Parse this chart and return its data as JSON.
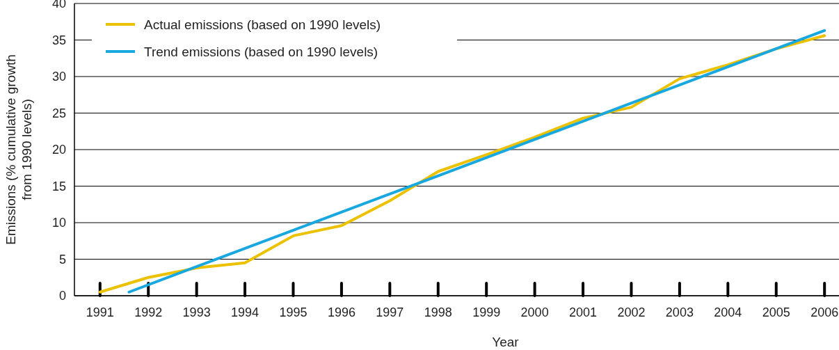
{
  "chart_data": {
    "type": "line",
    "xlabel": "Year",
    "ylabel": "Emissions (% cumulative growth from 1990 levels)",
    "xlim": [
      1990.47,
      2006.3
    ],
    "xticks": [
      1991,
      1992,
      1993,
      1994,
      1995,
      1996,
      1997,
      1998,
      1999,
      2000,
      2001,
      2002,
      2003,
      2004,
      2005,
      2006
    ],
    "ylim": [
      0,
      40
    ],
    "yticks": [
      0,
      5,
      10,
      15,
      20,
      25,
      30,
      35,
      40
    ],
    "grid": "y",
    "legend": "top left",
    "line_style": "solid",
    "marker": "none",
    "series": [
      {
        "name": "Actual emissions (based on 1990 levels)",
        "color": "#ecc200",
        "x": [
          1991,
          1992,
          1993,
          1994,
          1995,
          1996,
          1997,
          1998,
          1999,
          2000,
          2001,
          2002,
          2003,
          2004,
          2005,
          2006
        ],
        "values": [
          0.5,
          2.5,
          3.8,
          4.5,
          8.2,
          9.6,
          13,
          17,
          19.3,
          21.7,
          24.3,
          25.8,
          29.7,
          31.6,
          33.8,
          35.6
        ]
      },
      {
        "name": "Trend emissions (based on 1990 levels)",
        "color": "#18a8df",
        "x": [
          1991.6,
          2006
        ],
        "values": [
          0.5,
          36.3
        ]
      }
    ]
  }
}
